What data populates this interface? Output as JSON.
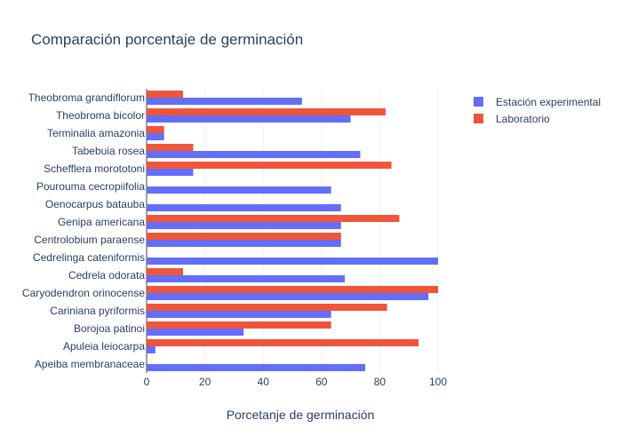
{
  "chart_data": {
    "type": "bar",
    "orientation": "horizontal",
    "title": "Comparación porcentaje de germinación",
    "xlabel": "Porcetanje de germinación",
    "ylabel": "",
    "xlim": [
      0,
      100
    ],
    "xticks": [
      0,
      20,
      40,
      60,
      80,
      100
    ],
    "grid": true,
    "legend_position": "top-right",
    "categories": [
      "Apeiba membranaceae",
      "Apuleia leiocarpa",
      "Borojoa patinoi",
      "Cariniana pyriformis",
      "Caryodendron orinocense",
      "Cedrela odorata",
      "Cedrelinga cateniformis",
      "Centrolobium paraense",
      "Genipa americana",
      "Oenocarpus batauba",
      "Pourouma cecropiifolia",
      "Schefflera morototoni",
      "Tabebuia rosea",
      "Terminalia amazonia",
      "Theobroma bicolor",
      "Theobroma grandiflorum"
    ],
    "series": [
      {
        "name": "Estación experimental",
        "color": "#636efa",
        "values": [
          75,
          3,
          33.3,
          63.3,
          96.7,
          68,
          100,
          66.7,
          66.7,
          66.7,
          63.3,
          16,
          73.3,
          6,
          70,
          53.3
        ]
      },
      {
        "name": "Laboratorio",
        "color": "#ef553b",
        "values": [
          0,
          93.3,
          63.3,
          82.5,
          100,
          12.5,
          0,
          66.7,
          86.7,
          0,
          0,
          84,
          16,
          6,
          82,
          12.5
        ]
      }
    ]
  }
}
